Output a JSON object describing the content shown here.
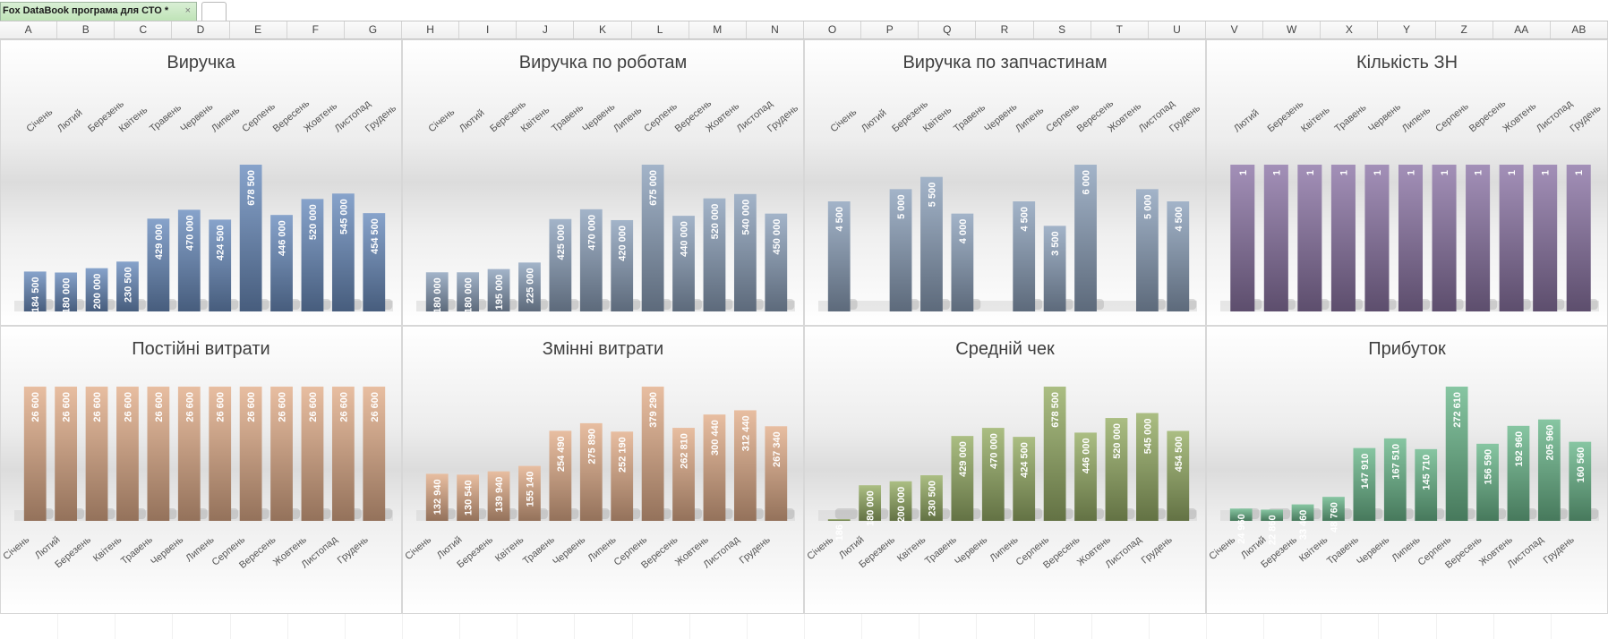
{
  "tab": {
    "title": "Fox DataBook програма для СТО *",
    "close_glyph": "×"
  },
  "columns": [
    "A",
    "B",
    "C",
    "D",
    "E",
    "F",
    "G",
    "H",
    "I",
    "J",
    "K",
    "L",
    "M",
    "N",
    "O",
    "P",
    "Q",
    "R",
    "S",
    "T",
    "U",
    "V",
    "W",
    "X",
    "Y",
    "Z",
    "AA",
    "AB"
  ],
  "colors": {
    "blue": "#6d8fc0",
    "steel": "#8fa3bd",
    "purple": "#8f78a8",
    "orange": "#e3b08c",
    "green": "#98b068",
    "teal": "#6dba8d"
  },
  "chart_data": [
    {
      "type": "bar",
      "title": "Виручка",
      "categories": [
        "Січень",
        "Лютий",
        "Березень",
        "Квітень",
        "Травень",
        "Червень",
        "Липень",
        "Серпень",
        "Вересень",
        "Жовтень",
        "Листопад",
        "Грудень"
      ],
      "values": [
        184500,
        180000,
        200000,
        230500,
        429000,
        470000,
        424500,
        678500,
        446000,
        520000,
        545000,
        454500
      ],
      "labels": [
        "184 500",
        "180 000",
        "200 000",
        "230 500",
        "429 000",
        "470 000",
        "424 500",
        "678 500",
        "446 000",
        "520 000",
        "545 000",
        "454 500"
      ],
      "axis_labels_position": "top",
      "color": "blue",
      "grid": false
    },
    {
      "type": "bar",
      "title": "Виручка по роботам",
      "categories": [
        "Січень",
        "Лютий",
        "Березень",
        "Квітень",
        "Травень",
        "Червень",
        "Липень",
        "Серпень",
        "Вересень",
        "Жовтень",
        "Листопад",
        "Грудень"
      ],
      "values": [
        180000,
        180000,
        195000,
        225000,
        425000,
        470000,
        420000,
        675000,
        440000,
        520000,
        540000,
        450000
      ],
      "labels": [
        "180 000",
        "180 000",
        "195 000",
        "225 000",
        "425 000",
        "470 000",
        "420 000",
        "675 000",
        "440 000",
        "520 000",
        "540 000",
        "450 000"
      ],
      "axis_labels_position": "top",
      "color": "steel",
      "grid": false
    },
    {
      "type": "bar",
      "title": "Виручка по запчастинам",
      "categories": [
        "Січень",
        "Лютий",
        "Березень",
        "Квітень",
        "Травень",
        "Червень",
        "Липень",
        "Серпень",
        "Вересень",
        "Жовтень",
        "Листопад",
        "Грудень"
      ],
      "values": [
        4500,
        0,
        5000,
        5500,
        4000,
        0,
        4500,
        3500,
        6000,
        0,
        5000,
        4500
      ],
      "labels": [
        "4 500",
        "",
        "5 000",
        "5 500",
        "4 000",
        "",
        "4 500",
        "3 500",
        "6 000",
        "",
        "5 000",
        "4 500"
      ],
      "axis_labels_position": "top",
      "color": "steel",
      "grid": false
    },
    {
      "type": "bar",
      "title": "Кількість ЗН",
      "categories": [
        "Лютий",
        "Березень",
        "Квітень",
        "Травень",
        "Червень",
        "Липень",
        "Серпень",
        "Вересень",
        "Жовтень",
        "Листопад",
        "Грудень"
      ],
      "values": [
        1,
        1,
        1,
        1,
        1,
        1,
        1,
        1,
        1,
        1,
        1
      ],
      "labels": [
        "1",
        "1",
        "1",
        "1",
        "1",
        "1",
        "1",
        "1",
        "1",
        "1",
        "1"
      ],
      "axis_labels_position": "top",
      "color": "purple",
      "grid": false
    },
    {
      "type": "bar",
      "title": "Постійні витрати",
      "categories": [
        "Січень",
        "Лютий",
        "Березень",
        "Квітень",
        "Травень",
        "Червень",
        "Липень",
        "Серпень",
        "Вересень",
        "Жовтень",
        "Листопад",
        "Грудень"
      ],
      "values": [
        26600,
        26600,
        26600,
        26600,
        26600,
        26600,
        26600,
        26600,
        26600,
        26600,
        26600,
        26600
      ],
      "labels": [
        "26 600",
        "26 600",
        "26 600",
        "26 600",
        "26 600",
        "26 600",
        "26 600",
        "26 600",
        "26 600",
        "26 600",
        "26 600",
        "26 600"
      ],
      "axis_labels_position": "bottom",
      "color": "orange",
      "grid": false
    },
    {
      "type": "bar",
      "title": "Змінні витрати",
      "categories": [
        "Січень",
        "Лютий",
        "Березень",
        "Квітень",
        "Травень",
        "Червень",
        "Липень",
        "Серпень",
        "Вересень",
        "Жовтень",
        "Листопад",
        "Грудень"
      ],
      "values": [
        132940,
        130540,
        139940,
        155140,
        254490,
        275890,
        252190,
        379290,
        262810,
        300440,
        312440,
        267340
      ],
      "labels": [
        "132 940",
        "130 540",
        "139 940",
        "155 140",
        "254 490",
        "275 890",
        "252 190",
        "379 290",
        "262 810",
        "300 440",
        "312 440",
        "267 340"
      ],
      "axis_labels_position": "bottom",
      "color": "orange",
      "grid": false
    },
    {
      "type": "bar",
      "title": "Средній чек",
      "categories": [
        "Січень",
        "Лютий",
        "Березень",
        "Квітень",
        "Травень",
        "Червень",
        "Липень",
        "Серпень",
        "Вересень",
        "Жовтень",
        "Листопад",
        "Грудень"
      ],
      "values": [
        186,
        180000,
        200000,
        230500,
        429000,
        470000,
        424500,
        678500,
        446000,
        520000,
        545000,
        454500
      ],
      "labels": [
        "186",
        "180 000",
        "200 000",
        "230 500",
        "429 000",
        "470 000",
        "424 500",
        "678 500",
        "446 000",
        "520 000",
        "545 000",
        "454 500"
      ],
      "axis_labels_position": "bottom",
      "color": "green",
      "grid": false
    },
    {
      "type": "bar",
      "title": "Прибуток",
      "categories": [
        "Січень",
        "Лютий",
        "Березень",
        "Квітень",
        "Травень",
        "Червень",
        "Липень",
        "Серпень",
        "Вересень",
        "Жовтень",
        "Листопад",
        "Грудень"
      ],
      "values": [
        24960,
        22860,
        33460,
        48760,
        147910,
        167510,
        145710,
        272610,
        156590,
        192960,
        205960,
        160560
      ],
      "labels": [
        "24 960",
        "22 860",
        "33 460",
        "48 760",
        "147 910",
        "167 510",
        "145 710",
        "272 610",
        "156 590",
        "192 960",
        "205 960",
        "160 560"
      ],
      "axis_labels_position": "bottom",
      "color": "teal",
      "grid": false
    }
  ]
}
